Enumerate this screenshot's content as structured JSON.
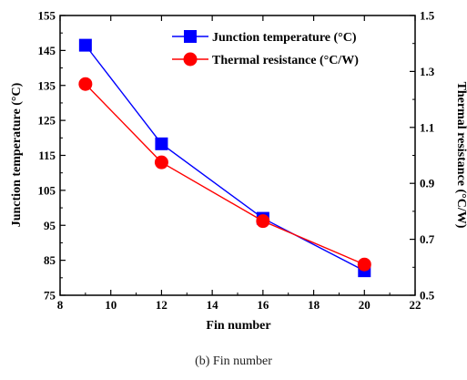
{
  "caption": "(b) Fin number",
  "chart_data": {
    "type": "line",
    "xlabel": "Fin number",
    "ylabel_left": "Junction temperature (°C)",
    "ylabel_right": "Thermal resistance (°C/W)",
    "xlim": [
      8,
      22
    ],
    "ylim_left": [
      75,
      155
    ],
    "ylim_right": [
      0.5,
      1.5
    ],
    "x_ticks": [
      8,
      10,
      12,
      14,
      16,
      18,
      20,
      22
    ],
    "y_left_ticks": [
      75,
      85,
      95,
      105,
      115,
      125,
      135,
      145,
      155
    ],
    "y_right_ticks": [
      "0.5",
      "0.7",
      "0.9",
      "1.1",
      "1.3",
      "1.5"
    ],
    "grid": false,
    "legend_position": "top-right",
    "series": [
      {
        "name": "Junction temperature (°C)",
        "axis": "left",
        "marker": "square",
        "color": "#0000ff",
        "x": [
          9,
          12,
          16,
          20
        ],
        "values": [
          146.5,
          118.3,
          97.0,
          82.0
        ]
      },
      {
        "name": "Thermal resistance (°C/W)",
        "axis": "right",
        "marker": "circle",
        "color": "#ff0000",
        "x": [
          9,
          12,
          16,
          20
        ],
        "values": [
          1.255,
          0.975,
          0.765,
          0.61
        ]
      }
    ]
  }
}
